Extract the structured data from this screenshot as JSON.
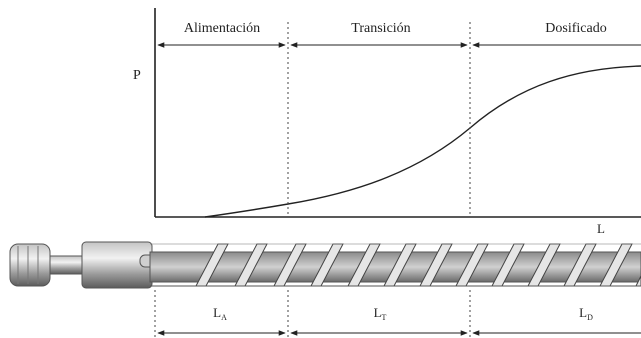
{
  "zones": {
    "feed": "Alimentación",
    "transition": "Transición",
    "metering": "Dosificado"
  },
  "axes": {
    "y_label": "P",
    "x_label": "L"
  },
  "lengths": {
    "feed": "L",
    "feed_sub": "A",
    "transition": "L",
    "transition_sub": "T",
    "metering": "L",
    "metering_sub": "D"
  },
  "colors": {
    "line": "#222222",
    "screw_dark": "#6f6f6f",
    "screw_light": "#dcdcdc"
  }
}
